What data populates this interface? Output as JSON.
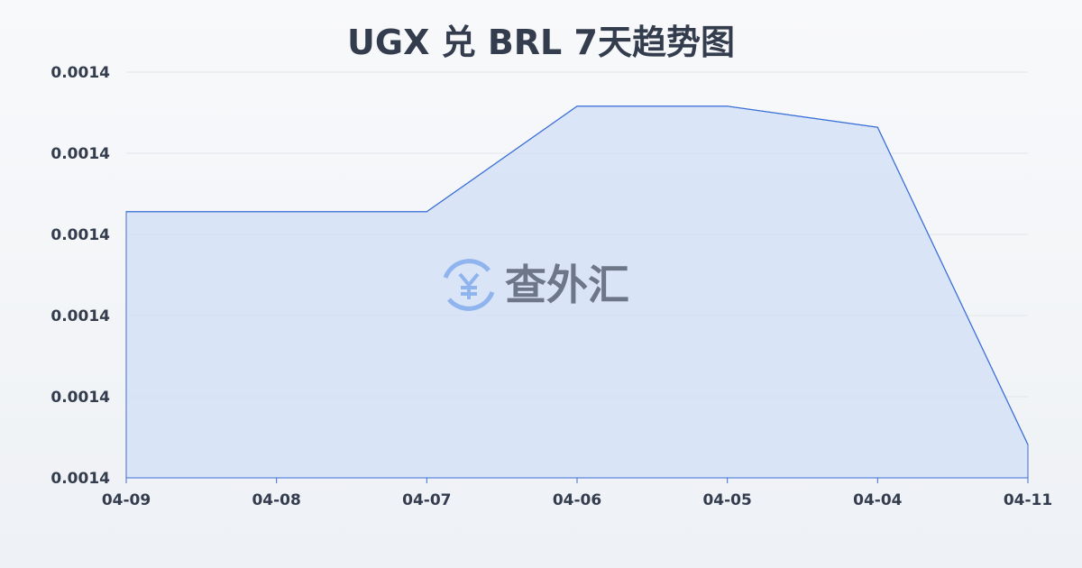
{
  "chart_data": {
    "type": "area",
    "title": "UGX 兑 BRL 7天趋势图",
    "xlabel": "",
    "ylabel": "",
    "categories": [
      "04-09",
      "04-08",
      "04-07",
      "04-06",
      "04-05",
      "04-04",
      "04-11"
    ],
    "values": [
      0.0014078,
      0.0014078,
      0.0014078,
      0.0014208,
      0.0014208,
      0.0014182,
      0.0013791
    ],
    "ylim": [
      0.001375,
      0.001425
    ],
    "yticks": [
      0.001425,
      0.001415,
      0.001405,
      0.001395,
      0.001385,
      0.001375
    ],
    "ytick_labels": [
      "0.0014",
      "0.0014",
      "0.0014",
      "0.0014",
      "0.0014",
      "0.0014"
    ],
    "grid": true,
    "line_color": "#3a6fd8",
    "fill_color": "#d3e0f6"
  },
  "watermark": {
    "text": "查外汇",
    "icon": "yen-exchange-icon",
    "icon_color": "#8fb4ee"
  }
}
